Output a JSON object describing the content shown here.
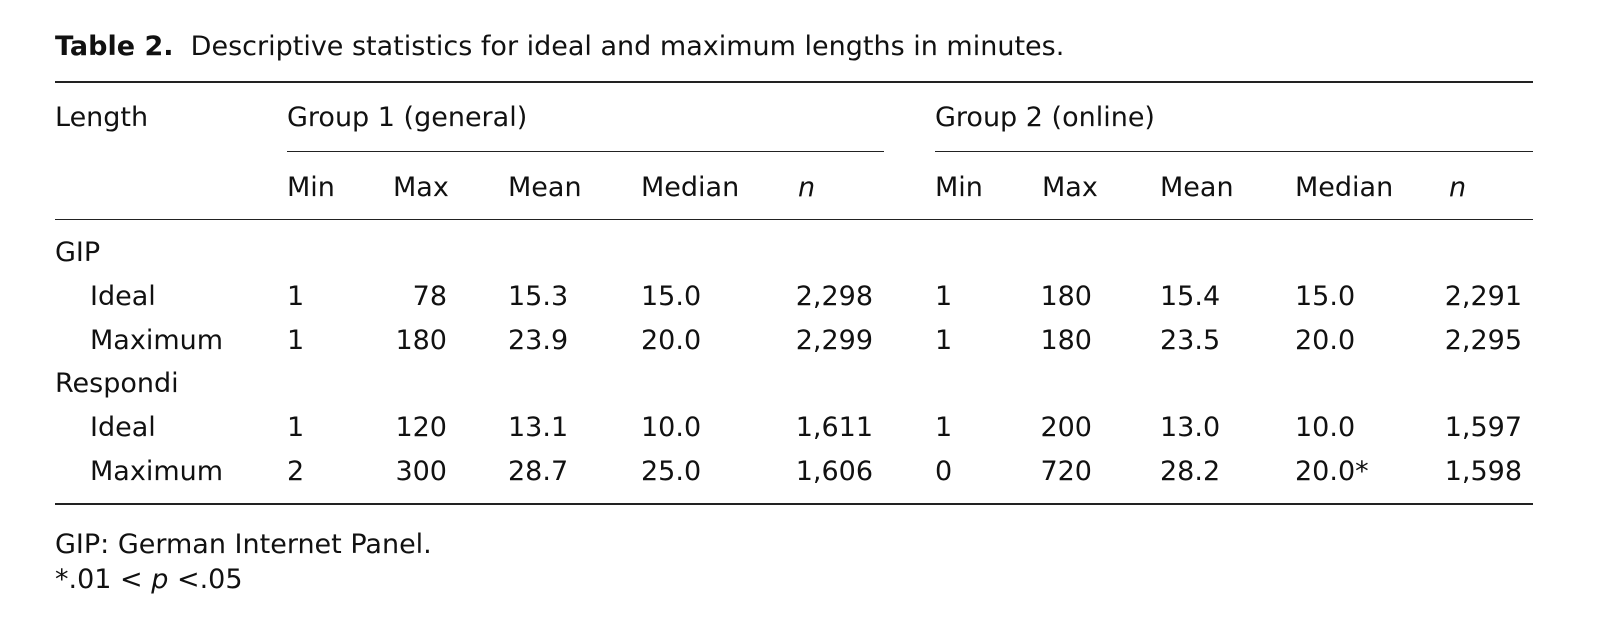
{
  "caption": {
    "label": "Table 2.",
    "text": "Descriptive statistics for ideal and maximum lengths in minutes."
  },
  "header": {
    "stub": "Length",
    "groups": [
      {
        "name": "Group 1 (general)",
        "columns": [
          "Min",
          "Max",
          "Mean",
          "Median",
          "n"
        ]
      },
      {
        "name": "Group 2 (online)",
        "columns": [
          "Min",
          "Max",
          "Mean",
          "Median",
          "n"
        ]
      }
    ]
  },
  "sections": [
    {
      "name": "GIP",
      "rows": [
        {
          "label": "Ideal",
          "cells": [
            "1",
            "78",
            "15.3",
            "15.0",
            "2,298",
            "1",
            "180",
            "15.4",
            "15.0",
            "2,291"
          ]
        },
        {
          "label": "Maximum",
          "cells": [
            "1",
            "180",
            "23.9",
            "20.0",
            "2,299",
            "1",
            "180",
            "23.5",
            "20.0",
            "2,295"
          ]
        }
      ]
    },
    {
      "name": "Respondi",
      "rows": [
        {
          "label": "Ideal",
          "cells": [
            "1",
            "120",
            "13.1",
            "10.0",
            "1,611",
            "1",
            "200",
            "13.0",
            "10.0",
            "1,597"
          ]
        },
        {
          "label": "Maximum",
          "cells": [
            "2",
            "300",
            "28.7",
            "25.0",
            "1,606",
            "0",
            "720",
            "28.2",
            "20.0*",
            "1,598"
          ]
        }
      ]
    }
  ],
  "notes": [
    {
      "text": "GIP: German Internet Panel."
    },
    {
      "before": "*.01 < ",
      "italic": "p",
      "after": " <.05"
    }
  ]
}
